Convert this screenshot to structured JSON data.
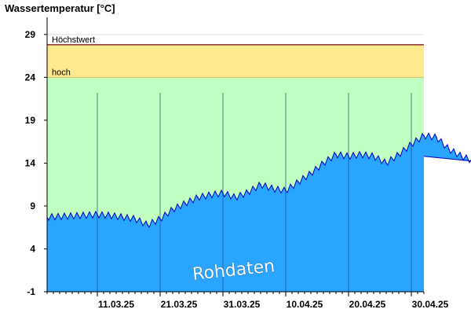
{
  "chart_data": {
    "type": "area",
    "title": "Wassertemperatur [°C]",
    "ylim": [
      -1,
      31
    ],
    "y_ticks": [
      -1,
      4,
      9,
      14,
      19,
      24,
      29
    ],
    "x_start": "2025-03-03",
    "x_ticks": [
      {
        "date": "2025-03-11",
        "label": "11.03.25"
      },
      {
        "date": "2025-03-21",
        "label": "21.03.25"
      },
      {
        "date": "2025-03-31",
        "label": "31.03.25"
      },
      {
        "date": "2025-04-10",
        "label": "10.04.25"
      },
      {
        "date": "2025-04-20",
        "label": "20.04.25"
      },
      {
        "date": "2025-04-30",
        "label": "30.04.25"
      }
    ],
    "thresholds": [
      {
        "name": "hoch",
        "value": 24,
        "color": "#ffe98f"
      },
      {
        "name": "Höchstwert",
        "value": 27.8,
        "color": "#8b2a2a"
      }
    ],
    "below_threshold_color": "#c0ffc0",
    "series": [
      {
        "color": "#2aa5ff",
        "line_color": "#0000cc",
        "x": [
          "2025-03-11",
          "2025-03-13",
          "2025-03-15",
          "2025-03-17",
          "2025-03-19",
          "2025-03-21",
          "2025-03-23",
          "2025-03-25",
          "2025-03-27",
          "2025-03-29",
          "2025-03-31",
          "2025-04-02",
          "2025-04-04",
          "2025-04-06",
          "2025-04-08",
          "2025-04-10",
          "2025-04-12",
          "2025-04-14",
          "2025-04-16",
          "2025-04-18",
          "2025-04-20",
          "2025-04-22",
          "2025-04-24",
          "2025-04-26",
          "2025-04-28",
          "2025-04-30",
          "2025-05-02",
          "2025-05-04",
          "2025-05-06",
          "2025-05-08",
          "2025-05-10"
        ],
        "y": [
          8.0,
          7.9,
          7.7,
          7.5,
          6.8,
          7.5,
          8.6,
          9.3,
          10.0,
          10.3,
          10.5,
          10.0,
          10.6,
          11.5,
          11.0,
          10.8,
          11.8,
          12.8,
          14.0,
          15.0,
          14.8,
          15.0,
          14.8,
          14.0,
          15.0,
          16.2,
          17.2,
          17.0,
          15.6,
          14.8,
          14.2
        ]
      }
    ],
    "annotation": "Rohdaten"
  }
}
